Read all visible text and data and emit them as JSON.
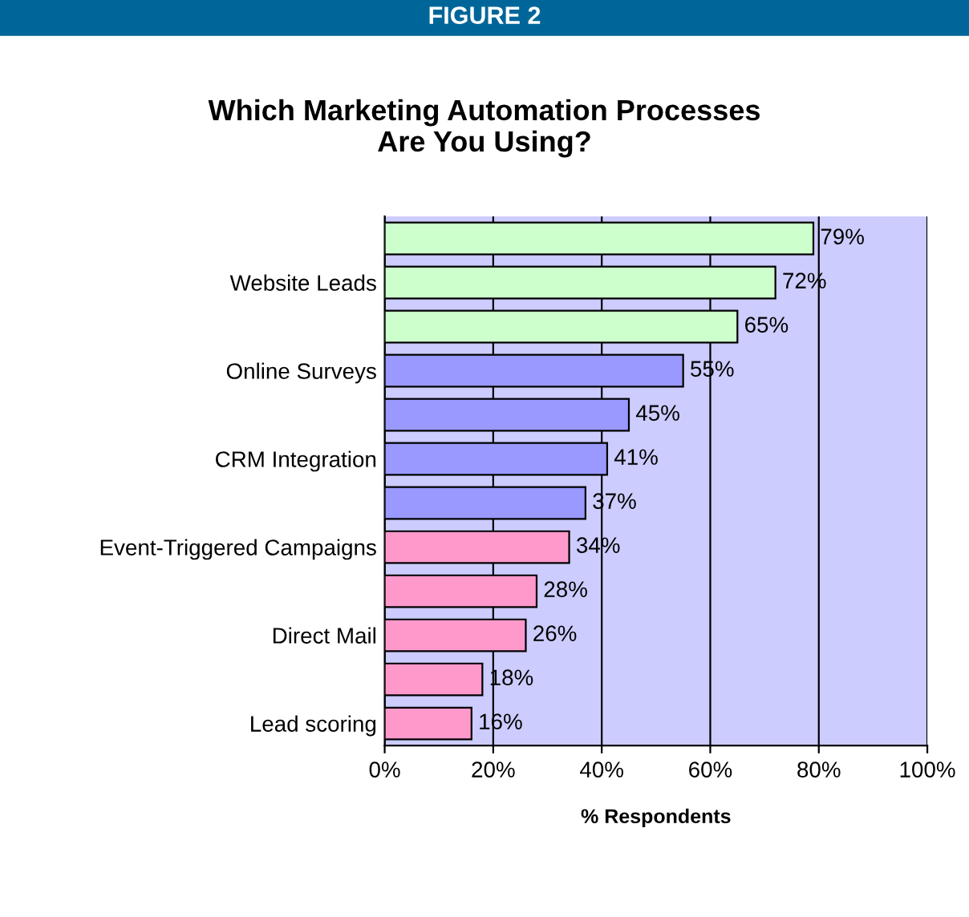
{
  "chart_data": {
    "type": "bar",
    "orientation": "horizontal",
    "title": "Which Marketing Automation Processes\nAre You Using?",
    "xlabel": "% Respondents",
    "annotations": [
      "FIGURE 2"
    ],
    "categories": [
      null,
      "Website Leads",
      null,
      "Online Surveys",
      null,
      "CRM Integration",
      null,
      "Event-Triggered Campaigns",
      null,
      "Direct Mail",
      null,
      "Lead scoring"
    ],
    "values": [
      79,
      72,
      65,
      55,
      45,
      41,
      37,
      34,
      28,
      26,
      18,
      16
    ],
    "value_labels": [
      "79%",
      "72%",
      "65%",
      "55%",
      "45%",
      "41%",
      "37%",
      "34%",
      "28%",
      "26%",
      "18%",
      "16%"
    ],
    "colors": [
      "#ccffcc",
      "#ccffcc",
      "#ccffcc",
      "#9999ff",
      "#9999ff",
      "#9999ff",
      "#9999ff",
      "#ff99cc",
      "#ff99cc",
      "#ff99cc",
      "#ff99cc",
      "#ff99cc"
    ],
    "xlim": [
      0,
      100
    ],
    "xticks": [
      {
        "value": 0,
        "label": "0%"
      },
      {
        "value": 20,
        "label": "20%"
      },
      {
        "value": 40,
        "label": "40%"
      },
      {
        "value": 60,
        "label": "60%"
      },
      {
        "value": 80,
        "label": "80%"
      },
      {
        "value": 100,
        "label": "100%"
      }
    ],
    "grid": "x"
  }
}
